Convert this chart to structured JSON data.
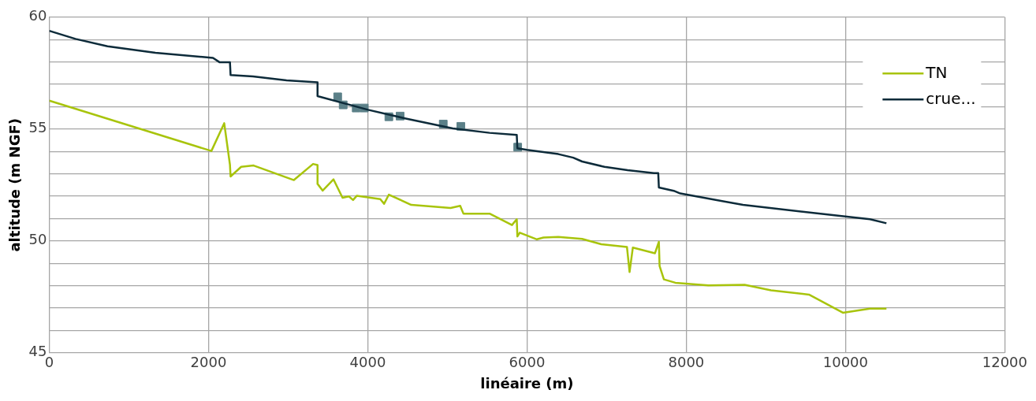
{
  "chart_data": {
    "type": "line",
    "xlabel": "linéaire (m)",
    "ylabel": "altitude (m NGF)",
    "xlim": [
      0,
      12000
    ],
    "xticks": [
      0,
      2000,
      4000,
      6000,
      8000,
      10000,
      12000
    ],
    "ylim": [
      45,
      60
    ],
    "yticks": [
      45,
      {
        "value": 46,
        "label": null
      },
      {
        "value": 47,
        "label": null
      },
      {
        "value": 48,
        "label": null
      },
      {
        "value": 49,
        "label": null
      },
      50,
      {
        "value": 51,
        "label": null
      },
      {
        "value": 52,
        "label": null
      },
      {
        "value": 53,
        "label": null
      },
      {
        "value": 54,
        "label": null
      },
      55,
      {
        "value": 56,
        "label": null
      },
      {
        "value": 57,
        "label": null
      },
      {
        "value": 58,
        "label": null
      },
      {
        "value": 59,
        "label": null
      },
      60
    ],
    "grid": true,
    "legend": "top right",
    "marker": "none",
    "line_style": "solid",
    "series": [
      {
        "name": "TN",
        "color": "#a8c40c",
        "x": [
          0,
          2036,
          2197,
          2269,
          2277,
          2410,
          2566,
          3072,
          3313,
          3369,
          3369,
          3434,
          3570,
          3683,
          3763,
          3815,
          3863,
          4157,
          4205,
          4265,
          4546,
          5040,
          5161,
          5201,
          5530,
          5811,
          5871,
          5879,
          5909,
          6124,
          6207,
          6393,
          6692,
          6932,
          7255,
          7288,
          7329,
          7607,
          7656,
          7665,
          7719,
          7863,
          8278,
          8733,
          9064,
          9541,
          9967,
          10307,
          10514
        ],
        "values": [
          56.27,
          54.02,
          55.26,
          53.41,
          52.88,
          53.31,
          53.37,
          52.72,
          53.44,
          53.39,
          52.55,
          52.25,
          52.75,
          51.93,
          51.99,
          51.83,
          52.02,
          51.87,
          51.66,
          52.07,
          51.61,
          51.47,
          51.57,
          51.22,
          51.22,
          50.71,
          50.97,
          50.2,
          50.37,
          50.07,
          50.15,
          50.18,
          50.09,
          49.85,
          49.73,
          48.61,
          49.7,
          49.45,
          49.96,
          48.88,
          48.28,
          48.13,
          48.01,
          48.04,
          47.79,
          47.6,
          46.79,
          46.97,
          46.97
        ]
      },
      {
        "name": "crue...",
        "color": "#0d2b3a",
        "x": [
          0,
          329,
          731,
          1333,
          2056,
          2137,
          2269,
          2277,
          2558,
          2980,
          3369,
          3369,
          4004,
          4466,
          5068,
          5530,
          5871,
          5879,
          6000,
          6393,
          6580,
          6692,
          6973,
          7263,
          7594,
          7648,
          7656,
          7843,
          7925,
          8712,
          9996,
          10307,
          10514
        ],
        "values": [
          59.39,
          59.03,
          58.7,
          58.41,
          58.18,
          57.99,
          57.99,
          57.41,
          57.35,
          57.18,
          57.09,
          56.47,
          55.86,
          55.48,
          55.03,
          54.83,
          54.74,
          54.14,
          54.07,
          53.88,
          53.72,
          53.55,
          53.31,
          53.16,
          53.03,
          53.03,
          52.39,
          52.24,
          52.12,
          51.61,
          51.09,
          50.97,
          50.79
        ]
      },
      {
        "type": "scatter",
        "marker": "square",
        "color": "#5b8088",
        "x": [
          3622,
          3691,
          3855,
          3956,
          4265,
          4406,
          4948,
          5169,
          5883
        ],
        "values": [
          56.44,
          56.08,
          55.94,
          55.94,
          55.55,
          55.58,
          55.22,
          55.12,
          54.19
        ]
      }
    ]
  }
}
